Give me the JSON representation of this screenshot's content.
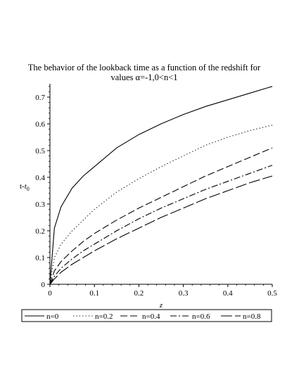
{
  "chart_data": {
    "type": "line",
    "title": "The behavior of the lookback time as a function of the redshift for values α=-1,0<n<1",
    "title_lines": [
      "The behavior of the lookback time as a function of the redshift for",
      "values α=-1,0<n<1"
    ],
    "xlabel": "z",
    "ylabel_main": "t-",
    "ylabel_italic": "t",
    "ylabel_sub": "0",
    "xlim": [
      0,
      0.5
    ],
    "ylim": [
      0,
      0.75
    ],
    "xticks": [
      0,
      0.1,
      0.2,
      0.3,
      0.4,
      0.5
    ],
    "xtick_labels": [
      "0",
      "0.1",
      "0.2",
      "0.3",
      "0.4",
      "0.5"
    ],
    "yticks": [
      0,
      0.1,
      0.2,
      0.3,
      0.4,
      0.5,
      0.6,
      0.7
    ],
    "ytick_labels": [
      "0",
      "0.1",
      "0.2",
      "0.3",
      "0.4",
      "0.5",
      "0.6",
      "0.7"
    ],
    "legend_position": "bottom",
    "grid": false,
    "line_color": "#000000",
    "series": [
      {
        "name": "n=0",
        "dash": "solid",
        "x": [
          0,
          0.01,
          0.025,
          0.05,
          0.075,
          0.1,
          0.15,
          0.2,
          0.25,
          0.3,
          0.35,
          0.4,
          0.45,
          0.5
        ],
        "y": [
          0,
          0.21,
          0.29,
          0.36,
          0.405,
          0.44,
          0.51,
          0.56,
          0.6,
          0.635,
          0.665,
          0.69,
          0.715,
          0.74
        ]
      },
      {
        "name": "n=0.2",
        "dash": "dot",
        "x": [
          0,
          0.01,
          0.025,
          0.05,
          0.075,
          0.1,
          0.15,
          0.2,
          0.25,
          0.3,
          0.35,
          0.4,
          0.45,
          0.5
        ],
        "y": [
          0,
          0.1,
          0.15,
          0.2,
          0.24,
          0.28,
          0.345,
          0.395,
          0.44,
          0.48,
          0.52,
          0.55,
          0.575,
          0.595
        ]
      },
      {
        "name": "n=0.4",
        "dash": "dash",
        "x": [
          0,
          0.01,
          0.025,
          0.05,
          0.075,
          0.1,
          0.15,
          0.2,
          0.25,
          0.3,
          0.35,
          0.4,
          0.45,
          0.5
        ],
        "y": [
          0,
          0.05,
          0.085,
          0.125,
          0.16,
          0.19,
          0.24,
          0.285,
          0.325,
          0.365,
          0.405,
          0.44,
          0.475,
          0.51
        ]
      },
      {
        "name": "n=0.6",
        "dash": "dashdot",
        "x": [
          0,
          0.01,
          0.025,
          0.05,
          0.075,
          0.1,
          0.15,
          0.2,
          0.25,
          0.3,
          0.35,
          0.4,
          0.45,
          0.5
        ],
        "y": [
          0,
          0.03,
          0.06,
          0.095,
          0.125,
          0.15,
          0.2,
          0.245,
          0.285,
          0.32,
          0.355,
          0.385,
          0.415,
          0.445
        ]
      },
      {
        "name": "n=0.8",
        "dash": "longdash",
        "x": [
          0,
          0.01,
          0.025,
          0.05,
          0.075,
          0.1,
          0.15,
          0.2,
          0.25,
          0.3,
          0.35,
          0.4,
          0.45,
          0.5
        ],
        "y": [
          0,
          0.02,
          0.045,
          0.075,
          0.1,
          0.125,
          0.17,
          0.21,
          0.25,
          0.285,
          0.32,
          0.35,
          0.38,
          0.405
        ]
      }
    ]
  }
}
